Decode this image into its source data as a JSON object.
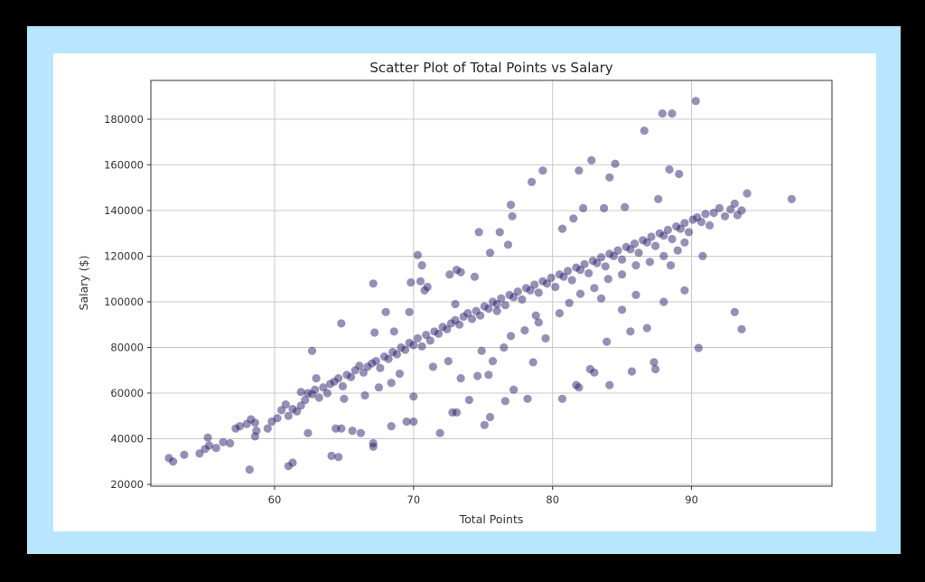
{
  "colors": {
    "background": "#000000",
    "frame": "#b8e6fe",
    "canvas": "#ffffff",
    "marker": "#2e1f6e",
    "grid": "#c8c8c8",
    "spine": "#555555"
  },
  "chart_data": {
    "type": "scatter",
    "title": "Scatter Plot of Total Points vs Salary",
    "xlabel": "Total Points",
    "ylabel": "Salary ($)",
    "xlim": [
      51.1,
      100.1
    ],
    "ylim": [
      19200,
      197000
    ],
    "xticks": [
      60,
      70,
      80,
      90
    ],
    "yticks": [
      20000,
      40000,
      60000,
      80000,
      100000,
      120000,
      140000,
      160000,
      180000
    ],
    "xtick_labels": [
      "60",
      "70",
      "80",
      "90"
    ],
    "ytick_labels": [
      "20000",
      "40000",
      "60000",
      "80000",
      "100000",
      "120000",
      "140000",
      "160000",
      "180000"
    ],
    "grid": true,
    "legend": null,
    "marker_alpha": 0.5,
    "series": [
      {
        "name": "players",
        "points": [
          [
            52.4,
            31500
          ],
          [
            52.7,
            30000
          ],
          [
            53.5,
            33000
          ],
          [
            54.6,
            33500
          ],
          [
            55.0,
            35500
          ],
          [
            55.3,
            37000
          ],
          [
            55.2,
            40500
          ],
          [
            55.8,
            36000
          ],
          [
            56.3,
            38500
          ],
          [
            56.8,
            38000
          ],
          [
            57.2,
            44500
          ],
          [
            57.5,
            45500
          ],
          [
            58.0,
            46500
          ],
          [
            58.3,
            48500
          ],
          [
            58.6,
            47000
          ],
          [
            58.2,
            26500
          ],
          [
            59.5,
            44500
          ],
          [
            59.8,
            47500
          ],
          [
            60.2,
            49000
          ],
          [
            60.5,
            52500
          ],
          [
            60.8,
            55000
          ],
          [
            61.0,
            50000
          ],
          [
            61.3,
            53000
          ],
          [
            61.6,
            52000
          ],
          [
            61.9,
            54500
          ],
          [
            62.2,
            57000
          ],
          [
            62.4,
            60000
          ],
          [
            62.7,
            59500
          ],
          [
            62.9,
            61500
          ],
          [
            63.2,
            58000
          ],
          [
            63.5,
            62500
          ],
          [
            63.8,
            60000
          ],
          [
            64.0,
            64000
          ],
          [
            64.3,
            65000
          ],
          [
            64.6,
            66500
          ],
          [
            64.9,
            63000
          ],
          [
            65.2,
            68000
          ],
          [
            65.5,
            67000
          ],
          [
            65.8,
            70000
          ],
          [
            66.1,
            72000
          ],
          [
            66.4,
            69000
          ],
          [
            66.7,
            71500
          ],
          [
            67.0,
            73000
          ],
          [
            67.3,
            74000
          ],
          [
            67.6,
            71000
          ],
          [
            67.9,
            76000
          ],
          [
            68.2,
            75000
          ],
          [
            68.5,
            78000
          ],
          [
            68.8,
            77000
          ],
          [
            69.1,
            80000
          ],
          [
            69.4,
            79000
          ],
          [
            69.7,
            82000
          ],
          [
            70.0,
            81000
          ],
          [
            70.3,
            84000
          ],
          [
            70.6,
            80500
          ],
          [
            70.9,
            85500
          ],
          [
            71.2,
            83000
          ],
          [
            71.5,
            87000
          ],
          [
            71.8,
            86000
          ],
          [
            72.1,
            89000
          ],
          [
            72.4,
            88000
          ],
          [
            72.7,
            90500
          ],
          [
            73.0,
            92000
          ],
          [
            73.3,
            90000
          ],
          [
            73.6,
            93500
          ],
          [
            73.9,
            95000
          ],
          [
            74.2,
            92500
          ],
          [
            74.5,
            96000
          ],
          [
            74.8,
            94000
          ],
          [
            75.1,
            98000
          ],
          [
            75.4,
            97000
          ],
          [
            75.7,
            100000
          ],
          [
            76.0,
            99000
          ],
          [
            76.3,
            101500
          ],
          [
            76.6,
            98500
          ],
          [
            76.9,
            103000
          ],
          [
            77.2,
            102000
          ],
          [
            77.5,
            104500
          ],
          [
            77.8,
            101000
          ],
          [
            78.1,
            106000
          ],
          [
            78.4,
            105000
          ],
          [
            78.7,
            107500
          ],
          [
            79.0,
            104000
          ],
          [
            79.3,
            109000
          ],
          [
            79.6,
            108000
          ],
          [
            79.9,
            110500
          ],
          [
            80.2,
            106500
          ],
          [
            80.5,
            112000
          ],
          [
            80.8,
            111000
          ],
          [
            81.1,
            113500
          ],
          [
            81.4,
            109500
          ],
          [
            81.7,
            115000
          ],
          [
            82.0,
            114000
          ],
          [
            82.3,
            116500
          ],
          [
            82.6,
            112500
          ],
          [
            82.9,
            118000
          ],
          [
            83.2,
            117000
          ],
          [
            83.5,
            119500
          ],
          [
            83.8,
            115500
          ],
          [
            84.1,
            121000
          ],
          [
            84.4,
            120000
          ],
          [
            84.7,
            122500
          ],
          [
            85.0,
            118500
          ],
          [
            85.3,
            124000
          ],
          [
            85.6,
            123000
          ],
          [
            85.9,
            125500
          ],
          [
            86.2,
            121500
          ],
          [
            86.5,
            127000
          ],
          [
            86.8,
            126000
          ],
          [
            87.1,
            128500
          ],
          [
            87.4,
            124500
          ],
          [
            87.7,
            130000
          ],
          [
            88.0,
            129000
          ],
          [
            88.3,
            131500
          ],
          [
            88.6,
            127500
          ],
          [
            88.9,
            133000
          ],
          [
            89.2,
            132000
          ],
          [
            89.5,
            134500
          ],
          [
            89.8,
            130500
          ],
          [
            90.1,
            136000
          ],
          [
            90.4,
            137000
          ],
          [
            90.7,
            135000
          ],
          [
            91.0,
            138500
          ],
          [
            91.3,
            133500
          ],
          [
            91.6,
            139000
          ],
          [
            92.0,
            141000
          ],
          [
            92.4,
            137500
          ],
          [
            92.8,
            140500
          ],
          [
            93.1,
            143000
          ],
          [
            93.3,
            138000
          ],
          [
            93.6,
            140000
          ],
          [
            94.0,
            147500
          ],
          [
            97.2,
            145000
          ],
          [
            90.3,
            188000
          ],
          [
            87.9,
            182500
          ],
          [
            88.6,
            182500
          ],
          [
            86.6,
            175000
          ],
          [
            84.5,
            160500
          ],
          [
            82.8,
            162000
          ],
          [
            88.4,
            158000
          ],
          [
            89.1,
            156000
          ],
          [
            79.3,
            157500
          ],
          [
            81.9,
            157500
          ],
          [
            84.1,
            154500
          ],
          [
            77.0,
            142500
          ],
          [
            77.1,
            137500
          ],
          [
            78.5,
            152500
          ],
          [
            76.2,
            130500
          ],
          [
            76.8,
            125000
          ],
          [
            75.5,
            121500
          ],
          [
            74.7,
            130500
          ],
          [
            87.6,
            145000
          ],
          [
            85.2,
            141500
          ],
          [
            83.7,
            141000
          ],
          [
            82.2,
            141000
          ],
          [
            81.5,
            136500
          ],
          [
            80.7,
            132000
          ],
          [
            70.3,
            120500
          ],
          [
            70.6,
            116000
          ],
          [
            70.8,
            105000
          ],
          [
            73.1,
            114000
          ],
          [
            73.4,
            113000
          ],
          [
            74.4,
            111000
          ],
          [
            72.6,
            112000
          ],
          [
            69.8,
            108500
          ],
          [
            70.5,
            109000
          ],
          [
            71.0,
            106500
          ],
          [
            67.1,
            108000
          ],
          [
            68.0,
            95500
          ],
          [
            69.7,
            95500
          ],
          [
            67.2,
            86500
          ],
          [
            64.8,
            90500
          ],
          [
            62.7,
            78500
          ],
          [
            63.0,
            66500
          ],
          [
            61.9,
            60500
          ],
          [
            68.6,
            87000
          ],
          [
            73.0,
            99000
          ],
          [
            76.0,
            96000
          ],
          [
            78.8,
            94000
          ],
          [
            83.5,
            101500
          ],
          [
            85.0,
            96500
          ],
          [
            86.0,
            103000
          ],
          [
            88.0,
            100000
          ],
          [
            89.5,
            105000
          ],
          [
            90.8,
            120000
          ],
          [
            93.1,
            95500
          ],
          [
            93.6,
            88000
          ],
          [
            90.5,
            79800
          ],
          [
            87.3,
            73500
          ],
          [
            87.4,
            70500
          ],
          [
            86.8,
            88500
          ],
          [
            85.6,
            87000
          ],
          [
            85.7,
            69500
          ],
          [
            83.9,
            82500
          ],
          [
            82.7,
            70500
          ],
          [
            83.0,
            69000
          ],
          [
            84.1,
            63500
          ],
          [
            81.7,
            63500
          ],
          [
            81.9,
            62500
          ],
          [
            80.7,
            57500
          ],
          [
            79.5,
            84000
          ],
          [
            78.6,
            73500
          ],
          [
            78.2,
            57500
          ],
          [
            77.2,
            61500
          ],
          [
            76.6,
            56500
          ],
          [
            75.7,
            74000
          ],
          [
            75.4,
            68000
          ],
          [
            74.6,
            67500
          ],
          [
            73.4,
            66500
          ],
          [
            74.0,
            57000
          ],
          [
            75.1,
            46000
          ],
          [
            75.5,
            49500
          ],
          [
            73.1,
            51500
          ],
          [
            72.8,
            51500
          ],
          [
            71.9,
            42500
          ],
          [
            70.0,
            58500
          ],
          [
            70.0,
            47500
          ],
          [
            69.5,
            47500
          ],
          [
            68.4,
            45500
          ],
          [
            67.1,
            38000
          ],
          [
            67.1,
            36500
          ],
          [
            66.2,
            42500
          ],
          [
            65.6,
            43500
          ],
          [
            64.8,
            44500
          ],
          [
            64.4,
            44500
          ],
          [
            64.6,
            32000
          ],
          [
            64.1,
            32500
          ],
          [
            61.0,
            28000
          ],
          [
            61.3,
            29500
          ],
          [
            58.7,
            43500
          ],
          [
            58.6,
            41000
          ],
          [
            62.4,
            42500
          ],
          [
            65.0,
            57500
          ],
          [
            66.5,
            59000
          ],
          [
            67.5,
            62500
          ],
          [
            68.4,
            64500
          ],
          [
            69.0,
            68500
          ],
          [
            71.4,
            71500
          ],
          [
            72.5,
            74000
          ],
          [
            74.9,
            78500
          ],
          [
            76.5,
            80000
          ],
          [
            77.0,
            85000
          ],
          [
            78.0,
            87500
          ],
          [
            79.0,
            91000
          ],
          [
            80.5,
            95000
          ],
          [
            81.2,
            99500
          ],
          [
            82.0,
            103500
          ],
          [
            83.0,
            106000
          ],
          [
            84.0,
            110000
          ],
          [
            85.0,
            112000
          ],
          [
            86.0,
            116000
          ],
          [
            87.0,
            117500
          ],
          [
            88.0,
            120000
          ],
          [
            88.5,
            116000
          ],
          [
            89.0,
            122500
          ],
          [
            89.5,
            126000
          ]
        ]
      }
    ]
  }
}
